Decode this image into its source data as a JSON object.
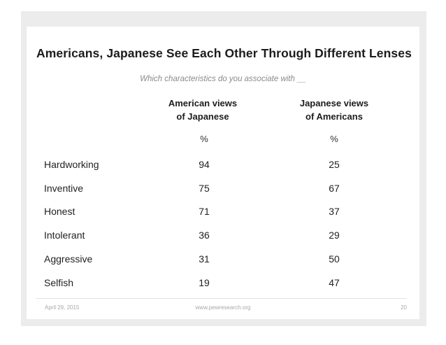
{
  "slide": {
    "title": "Americans, Japanese See Each Other Through Different Lenses",
    "subtitle": "Which characteristics do you associate with __",
    "columns": [
      {
        "line1": "American views",
        "line2": "of Japanese",
        "unit": "%"
      },
      {
        "line1": "Japanese views",
        "line2": "of Americans",
        "unit": "%"
      }
    ],
    "rows": [
      {
        "label": "Hardworking",
        "american_views_of_japanese": "94",
        "japanese_views_of_americans": "25"
      },
      {
        "label": "Inventive",
        "american_views_of_japanese": "75",
        "japanese_views_of_americans": "67"
      },
      {
        "label": "Honest",
        "american_views_of_japanese": "71",
        "japanese_views_of_americans": "37"
      },
      {
        "label": "Intolerant",
        "american_views_of_japanese": "36",
        "japanese_views_of_americans": "29"
      },
      {
        "label": "Aggressive",
        "american_views_of_japanese": "31",
        "japanese_views_of_americans": "50"
      },
      {
        "label": "Selfish",
        "american_views_of_japanese": "19",
        "japanese_views_of_americans": "47"
      }
    ]
  },
  "footer": {
    "date": "April 29, 2015",
    "url": "www.pewresearch.org",
    "page": "20"
  }
}
